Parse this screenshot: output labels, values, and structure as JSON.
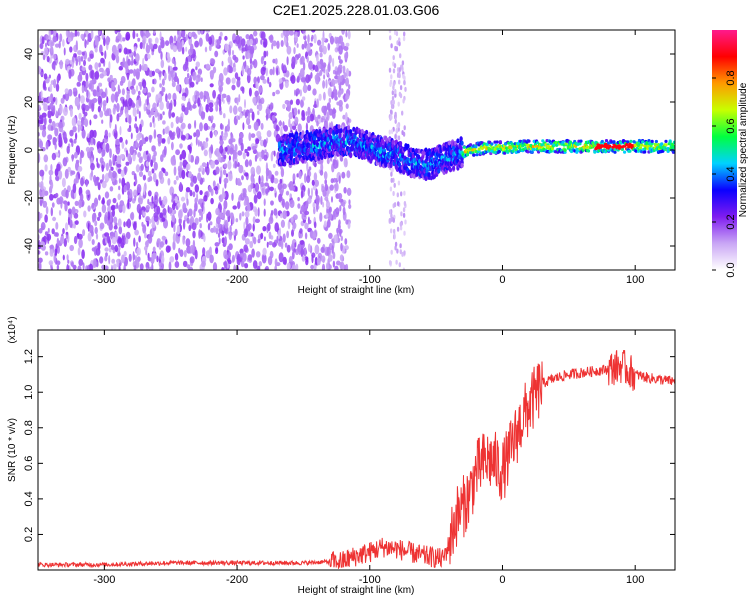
{
  "title": "C2E1.2025.228.01.03.G06",
  "chart_data": [
    {
      "type": "heatmap",
      "xlabel": "Height of straight line (km)",
      "ylabel": "Frequency (Hz)",
      "xlim": [
        -350,
        130
      ],
      "ylim": [
        -50,
        50
      ],
      "x_ticks": [
        -300,
        -200,
        -100,
        0,
        100
      ],
      "x_tick_labels": [
        "-300",
        "-200",
        "-100",
        "0",
        "100"
      ],
      "y_ticks": [
        -40,
        -20,
        0,
        20,
        40
      ],
      "y_tick_labels": [
        "-40",
        "-20",
        "0",
        "20",
        "40"
      ],
      "colorbar": {
        "label": "Normalized spectral amplitude",
        "range": [
          0,
          1
        ],
        "ticks": [
          0.0,
          0.2,
          0.4,
          0.6,
          0.8
        ],
        "tick_labels": [
          "0.0",
          "0.2",
          "0.4",
          "0.6",
          "0.8"
        ],
        "colormap": [
          "#ffffff",
          "#c9a6f5",
          "#7f1cf0",
          "#0a00ff",
          "#00d2ff",
          "#00ff40",
          "#c8ff00",
          "#ff9a00",
          "#ff0000",
          "#ff1a8c"
        ]
      },
      "ridge": {
        "x": [
          -165,
          -140,
          -125,
          -110,
          -95,
          -80,
          -65,
          -55,
          -45,
          -35,
          -25,
          -10,
          0,
          20,
          50,
          80,
          100,
          130
        ],
        "y": [
          0,
          2,
          4,
          3,
          0,
          -2,
          -6,
          -6,
          -4,
          -2,
          0,
          1,
          1,
          1.5,
          1.5,
          1.5,
          1.5,
          1.5
        ]
      },
      "grid": false,
      "legend": "colorbar right"
    },
    {
      "type": "line",
      "xlabel": "Height of straight line (km)",
      "ylabel": "SNR (10 * v/v)",
      "y_multiplier": "(x10⁴)",
      "xlim": [
        -350,
        130
      ],
      "ylim": [
        0,
        1.35
      ],
      "x_ticks": [
        -300,
        -200,
        -100,
        0,
        100
      ],
      "x_tick_labels": [
        "-300",
        "-200",
        "-100",
        "0",
        "100"
      ],
      "y_ticks": [
        0.2,
        0.4,
        0.6,
        0.8,
        1.0,
        1.2
      ],
      "y_tick_labels": [
        "0.2",
        "0.4",
        "0.6",
        "0.8",
        "1.0",
        "1.2"
      ],
      "series": [
        {
          "color": "#ee3333",
          "x": [
            -350,
            -300,
            -250,
            -200,
            -150,
            -120,
            -110,
            -100,
            -90,
            -80,
            -70,
            -60,
            -50,
            -45,
            -40,
            -35,
            -30,
            -25,
            -20,
            -15,
            -10,
            -5,
            0,
            5,
            10,
            15,
            20,
            25,
            30,
            40,
            50,
            60,
            70,
            80,
            85,
            90,
            95,
            100,
            110,
            120,
            130
          ],
          "y": [
            0.03,
            0.03,
            0.04,
            0.04,
            0.04,
            0.05,
            0.08,
            0.1,
            0.13,
            0.12,
            0.1,
            0.08,
            0.07,
            0.06,
            0.15,
            0.3,
            0.35,
            0.42,
            0.55,
            0.6,
            0.62,
            0.6,
            0.55,
            0.65,
            0.75,
            0.85,
            0.92,
            0.98,
            1.05,
            1.08,
            1.1,
            1.11,
            1.12,
            1.13,
            1.14,
            1.15,
            1.12,
            1.1,
            1.08,
            1.07,
            1.06
          ]
        }
      ],
      "grid": false
    }
  ]
}
